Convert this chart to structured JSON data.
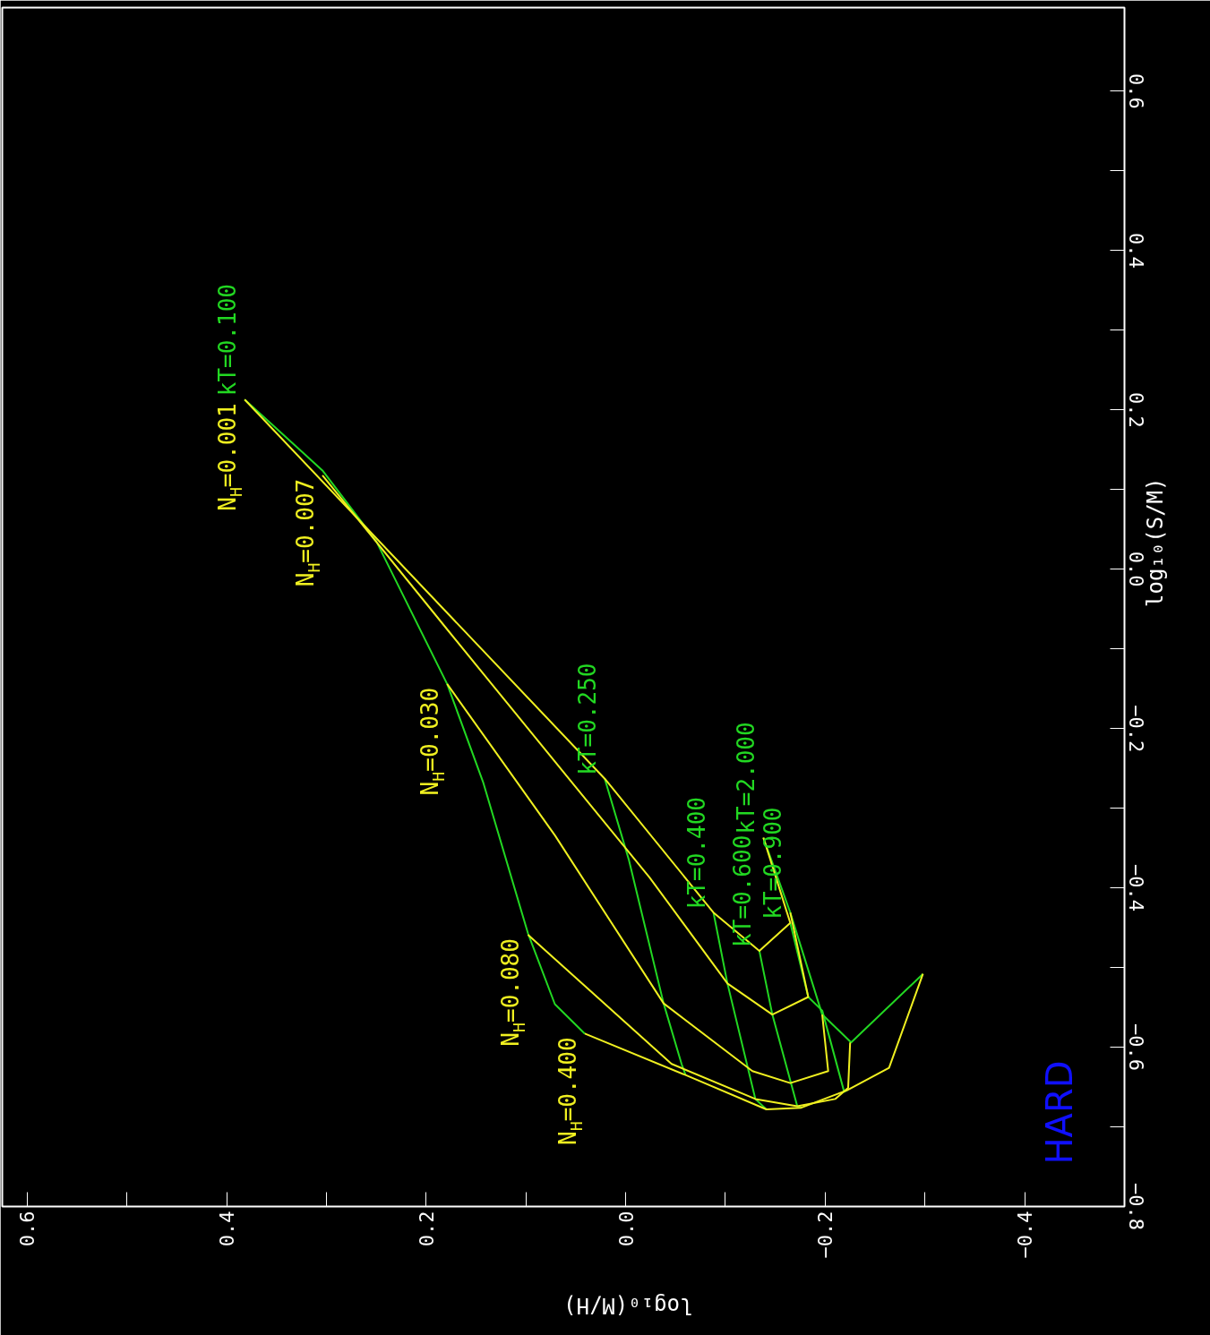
{
  "chart_data": {
    "type": "line",
    "xlabel": "log₁₀(M/H)",
    "ylabel": "log₁₀(S/M)",
    "xlim": [
      0.625,
      -0.5
    ],
    "ylim": [
      -0.8,
      0.705
    ],
    "xticks": [
      {
        "value": 0.6,
        "label": "0.6"
      },
      {
        "value": 0.5,
        "label": null
      },
      {
        "value": 0.4,
        "label": "0.4"
      },
      {
        "value": 0.3,
        "label": null
      },
      {
        "value": 0.2,
        "label": "0.2"
      },
      {
        "value": 0.1,
        "label": null
      },
      {
        "value": 0.0,
        "label": "0.0"
      },
      {
        "value": -0.1,
        "label": null
      },
      {
        "value": -0.2,
        "label": "−0.2"
      },
      {
        "value": -0.3,
        "label": null
      },
      {
        "value": -0.4,
        "label": "−0.4"
      }
    ],
    "yticks": [
      {
        "value": 0.6,
        "label": "0.6"
      },
      {
        "value": 0.5,
        "label": null
      },
      {
        "value": 0.4,
        "label": "0.4"
      },
      {
        "value": 0.3,
        "label": null
      },
      {
        "value": 0.2,
        "label": "0.2"
      },
      {
        "value": 0.1,
        "label": null
      },
      {
        "value": 0.0,
        "label": "0.0"
      },
      {
        "value": -0.1,
        "label": null
      },
      {
        "value": -0.2,
        "label": "−0.2"
      },
      {
        "value": -0.3,
        "label": null
      },
      {
        "value": -0.4,
        "label": "−0.4"
      },
      {
        "value": -0.5,
        "label": null
      },
      {
        "value": -0.6,
        "label": "−0.6"
      },
      {
        "value": -0.7,
        "label": null
      },
      {
        "value": -0.8,
        "label": "−0.8"
      }
    ],
    "grid": false,
    "annotations": [
      "HARD"
    ],
    "series": [
      {
        "name": "kT=0.100",
        "color": "#22d822",
        "x": [
          0.382,
          0.304,
          0.25,
          0.179,
          0.143,
          0.098,
          0.071,
          0.041
        ],
        "values": [
          0.213,
          0.124,
          0.035,
          -0.144,
          -0.267,
          -0.457,
          -0.546,
          -0.583
        ]
      },
      {
        "name": "kT=0.250",
        "color": "#22d822",
        "x": [
          0.021,
          -0.003,
          -0.038,
          -0.056,
          -0.06
        ],
        "values": [
          -0.263,
          -0.364,
          -0.545,
          -0.621,
          -0.635
        ]
      },
      {
        "name": "kT=0.400",
        "color": "#22d822",
        "x": [
          -0.088,
          -0.102,
          -0.13,
          -0.141
        ],
        "values": [
          -0.431,
          -0.52,
          -0.665,
          -0.678
        ]
      },
      {
        "name": "kT=0.600",
        "color": "#22d822",
        "x": [
          -0.134,
          -0.147,
          -0.172,
          -0.176
        ],
        "values": [
          -0.479,
          -0.559,
          -0.674,
          -0.676
        ]
      },
      {
        "name": "kT=0.900",
        "color": "#22d822",
        "x": [
          -0.165,
          -0.183,
          -0.197,
          -0.219,
          -0.222
        ],
        "values": [
          -0.444,
          -0.537,
          -0.554,
          -0.656,
          -0.654
        ]
      },
      {
        "name": "kT=2.000",
        "color": "#22d822",
        "x": [
          -0.138,
          -0.165,
          -0.197,
          -0.226,
          -0.298
        ],
        "values": [
          -0.337,
          -0.431,
          -0.559,
          -0.594,
          -0.508
        ]
      },
      {
        "name": "N$_{H}$=0.001",
        "color": "#f0f020",
        "x": [
          0.382,
          0.021,
          -0.088,
          -0.134,
          -0.165,
          -0.138
        ],
        "values": [
          0.213,
          -0.263,
          -0.431,
          -0.479,
          -0.444,
          -0.337
        ]
      },
      {
        "name": "N$_{H}$=0.007",
        "color": "#f0f020",
        "x": [
          0.304,
          0.178,
          0.057,
          -0.024,
          -0.102,
          -0.147,
          -0.183,
          -0.165
        ],
        "values": [
          0.118,
          -0.077,
          -0.263,
          -0.387,
          -0.52,
          -0.559,
          -0.537,
          -0.431
        ]
      },
      {
        "name": "N$_{H}$=0.030",
        "color": "#f0f020",
        "x": [
          0.179,
          0.071,
          -0.038,
          -0.127,
          -0.165,
          -0.203,
          -0.197
        ],
        "values": [
          -0.144,
          -0.334,
          -0.545,
          -0.63,
          -0.645,
          -0.63,
          -0.559
        ]
      },
      {
        "name": "N$_{H}$=0.080",
        "color": "#f0f020",
        "x": [
          0.098,
          -0.046,
          -0.13,
          -0.172,
          -0.21,
          -0.223,
          -0.225
        ],
        "values": [
          -0.459,
          -0.621,
          -0.665,
          -0.674,
          -0.665,
          -0.651,
          -0.594
        ]
      },
      {
        "name": "N$_{H}$=0.400",
        "color": "#f0f020",
        "x": [
          0.041,
          -0.06,
          -0.141,
          -0.176,
          -0.222,
          -0.264,
          -0.298
        ],
        "values": [
          -0.583,
          -0.635,
          -0.678,
          -0.676,
          -0.654,
          -0.626,
          -0.508
        ]
      }
    ]
  }
}
